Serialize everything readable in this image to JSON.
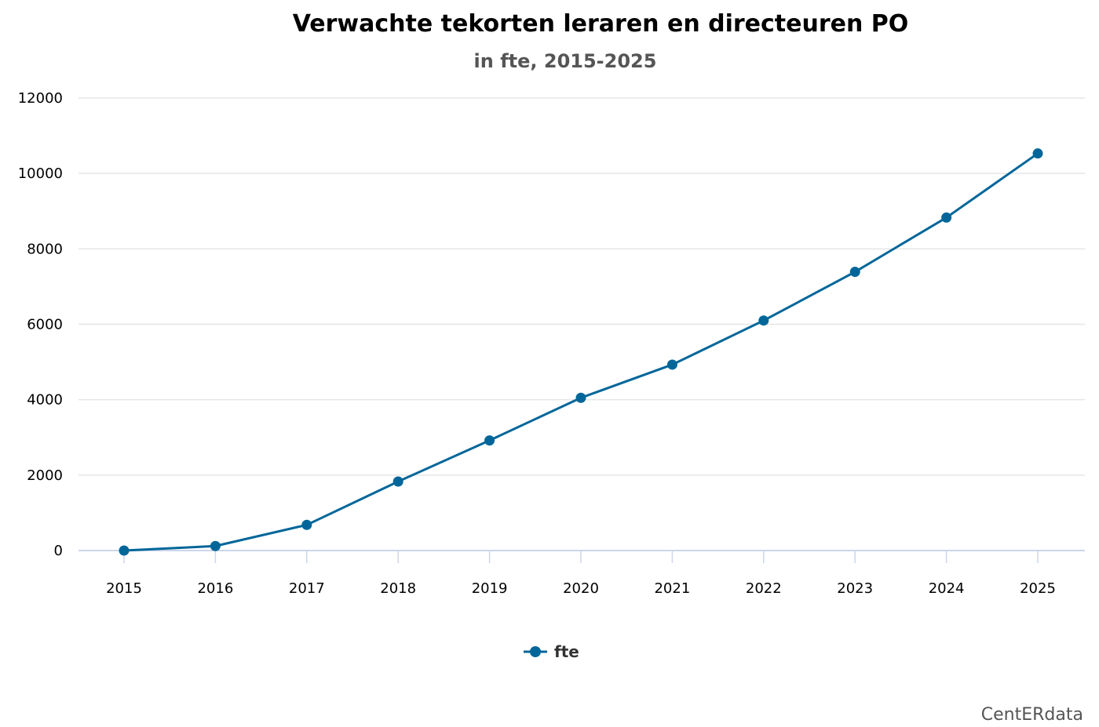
{
  "chart_data": {
    "type": "line",
    "title": "Verwachte tekorten leraren en directeuren PO",
    "subtitle": "in fte, 2015-2025",
    "categories": [
      "2015",
      "2016",
      "2017",
      "2018",
      "2019",
      "2020",
      "2021",
      "2022",
      "2023",
      "2024",
      "2025"
    ],
    "series": [
      {
        "name": "fte",
        "color": "#006699",
        "values": [
          0,
          120,
          680,
          1830,
          2920,
          4050,
          4930,
          6100,
          7390,
          8830,
          10530
        ]
      }
    ],
    "xlabel": "",
    "ylabel": "",
    "ylim": [
      0,
      12000
    ],
    "yticks": [
      0,
      2000,
      4000,
      6000,
      8000,
      10000,
      12000
    ],
    "grid": true,
    "legend_position": "bottom-center"
  },
  "credits": "CentERdata",
  "colors": {
    "grid": "#e6e6e6",
    "axis": "#ccd6eb",
    "series": "#006699"
  }
}
